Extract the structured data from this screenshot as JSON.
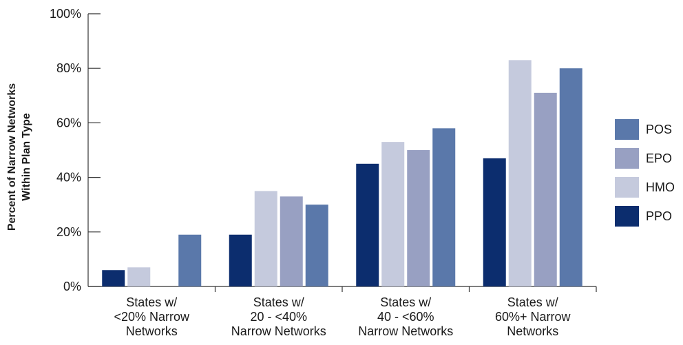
{
  "chart_data": {
    "type": "bar",
    "title": "",
    "xlabel": "",
    "ylabel_lines": [
      "Percent of Narrow Networks",
      "Within Plan Type"
    ],
    "ylim": [
      0,
      100
    ],
    "y_ticks": [
      0,
      20,
      40,
      60,
      80,
      100
    ],
    "y_tick_labels": [
      "0%",
      "20%",
      "40%",
      "60%",
      "80%",
      "100%"
    ],
    "categories": [
      [
        "States w/",
        "<20% Narrow",
        "Networks"
      ],
      [
        "States w/",
        "20 - <40%",
        "Narrow Networks"
      ],
      [
        "States w/",
        "40 - <60%",
        "Narrow Networks"
      ],
      [
        "States w/",
        "60%+ Narrow",
        "Networks"
      ]
    ],
    "series": [
      {
        "name": "PPO",
        "color": "#0c2d6e",
        "values": [
          6,
          19,
          45,
          47
        ]
      },
      {
        "name": "HMO",
        "color": "#c5cadd",
        "values": [
          7,
          35,
          53,
          83
        ]
      },
      {
        "name": "EPO",
        "color": "#98a0c2",
        "values": [
          0,
          33,
          50,
          71
        ]
      },
      {
        "name": "POS",
        "color": "#5a78aa",
        "values": [
          19,
          30,
          58,
          80
        ]
      }
    ],
    "legend": {
      "placement": "right",
      "order": [
        "POS",
        "EPO",
        "HMO",
        "PPO"
      ]
    },
    "grid": false
  }
}
